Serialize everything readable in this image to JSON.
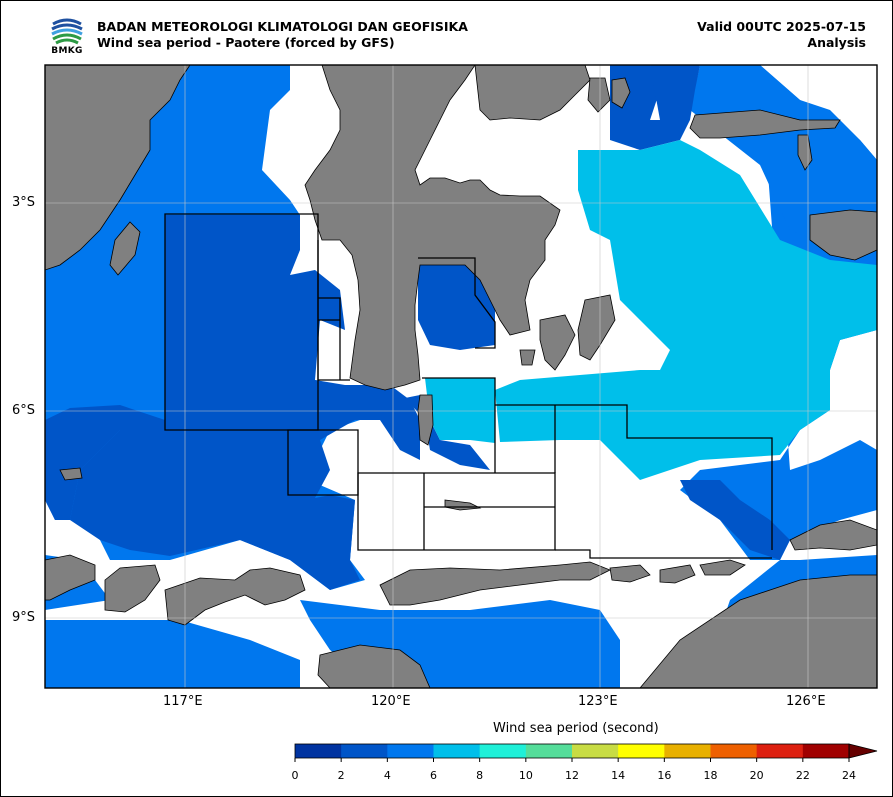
{
  "header": {
    "title_line1": "BADAN METEOROLOGI KLIMATOLOGI DAN GEOFISIKA",
    "title_line2": "Wind sea period - Paotere (forced by GFS)",
    "valid_line": "Valid 00UTC 2025-07-15",
    "analysis_label": "Analysis",
    "logo_text": "BMKG"
  },
  "axes": {
    "lat_labels": [
      "3°S",
      "6°S",
      "9°S"
    ],
    "lon_labels": [
      "117°E",
      "120°E",
      "123°E",
      "126°E"
    ],
    "lon_range": [
      115.0,
      127.0
    ],
    "lat_range": [
      -10.0,
      -1.0
    ]
  },
  "colorbar": {
    "title": "Wind sea period (second)",
    "ticks": [
      "0",
      "2",
      "4",
      "6",
      "8",
      "10",
      "12",
      "14",
      "16",
      "18",
      "20",
      "22",
      "24"
    ],
    "colors": [
      "#0033a0",
      "#0055c8",
      "#0077ee",
      "#00bfea",
      "#1ff0d8",
      "#55dd9a",
      "#c8dc44",
      "#ffff00",
      "#e8b000",
      "#ee6000",
      "#dd2010",
      "#a00000",
      "#660000"
    ]
  },
  "colors": {
    "land": "#808080",
    "level_0_2": "#0033a0",
    "level_2_4": "#0055c8",
    "level_4_6": "#0077ee",
    "level_6_8": "#00bfea"
  }
}
